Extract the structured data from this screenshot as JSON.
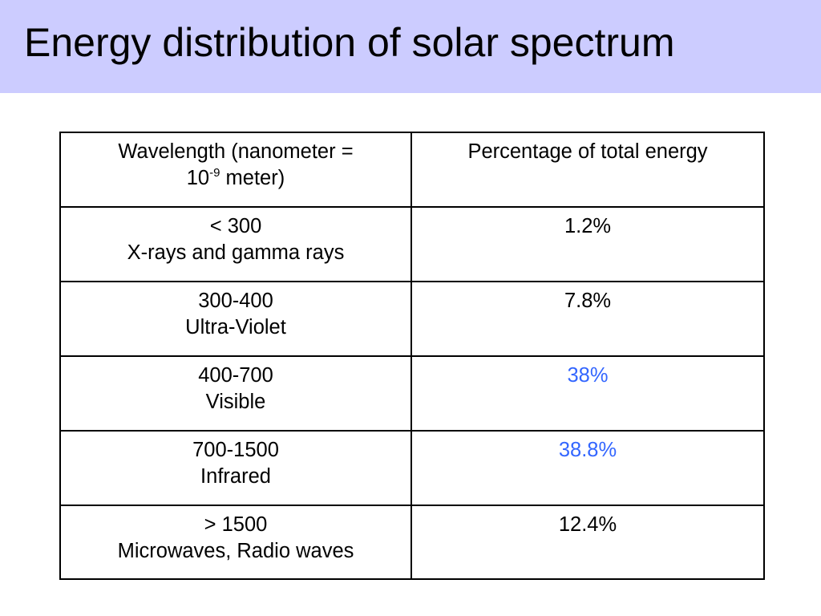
{
  "slide": {
    "title": "Energy distribution of solar spectrum",
    "band_color": "#ccccff",
    "highlight_color": "#3366ff"
  },
  "table": {
    "header": {
      "wavelength_prefix": "Wavelength (nanometer =",
      "wavelength_base": "10",
      "wavelength_exponent": "-9",
      "wavelength_suffix": " meter)",
      "percentage": "Percentage of total energy"
    },
    "rows": [
      {
        "range": "< 300",
        "band": "X-rays and gamma rays",
        "percent": "1.2%",
        "highlighted": false
      },
      {
        "range": "300-400",
        "band": "Ultra-Violet",
        "percent": "7.8%",
        "highlighted": false
      },
      {
        "range": "400-700",
        "band": "Visible",
        "percent": "38%",
        "highlighted": true
      },
      {
        "range": "700-1500",
        "band": "Infrared",
        "percent": "38.8%",
        "highlighted": true
      },
      {
        "range": "> 1500",
        "band": "Microwaves, Radio waves",
        "percent": "12.4%",
        "highlighted": false
      }
    ]
  }
}
